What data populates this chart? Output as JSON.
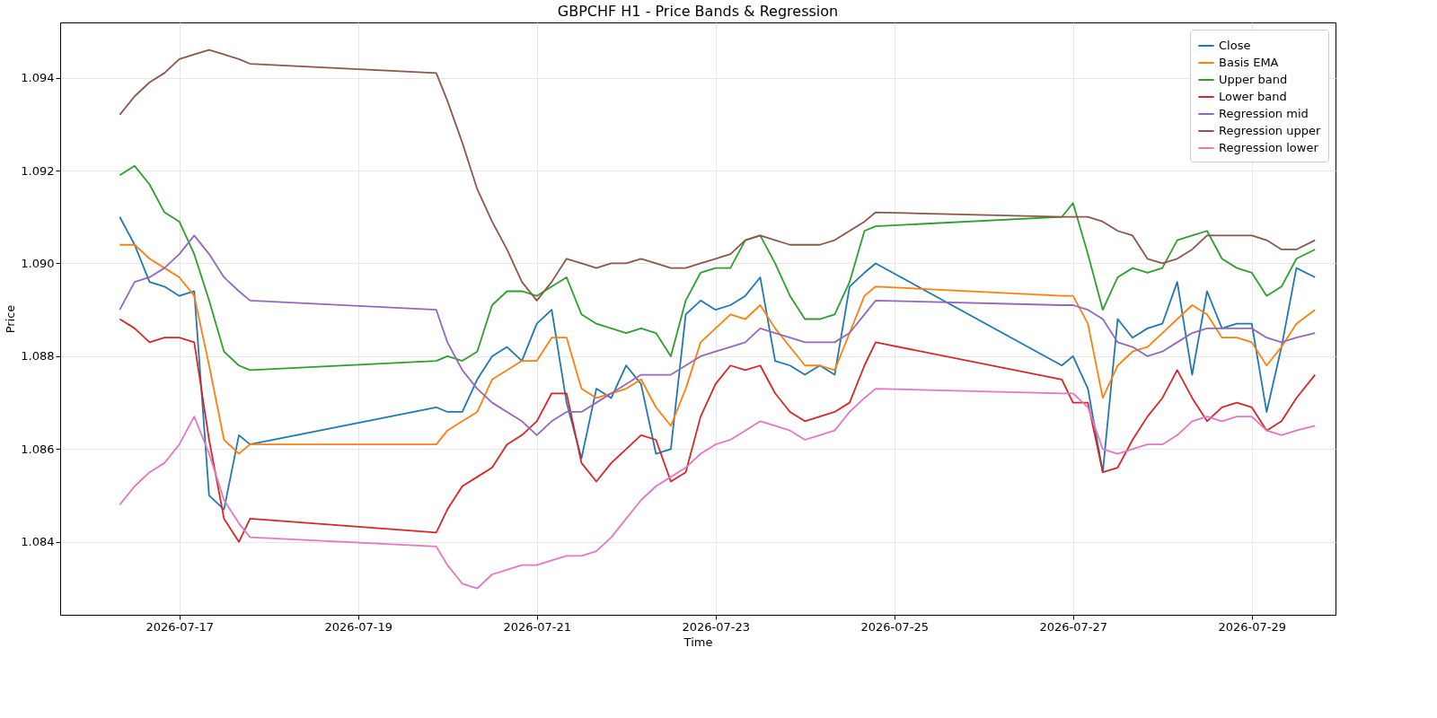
{
  "chart_data": {
    "type": "line",
    "title": "GBPCHF H1 - Price Bands & Regression",
    "xlabel": "Time",
    "ylabel": "Price",
    "x": [
      "2026-07-16T08:00",
      "2026-07-16T12:00",
      "2026-07-16T16:00",
      "2026-07-16T20:00",
      "2026-07-17T00:00",
      "2026-07-17T04:00",
      "2026-07-17T08:00",
      "2026-07-17T12:00",
      "2026-07-17T16:00",
      "2026-07-17T19:00",
      "2026-07-19T21:00",
      "2026-07-20T00:00",
      "2026-07-20T04:00",
      "2026-07-20T08:00",
      "2026-07-20T12:00",
      "2026-07-20T16:00",
      "2026-07-20T20:00",
      "2026-07-21T00:00",
      "2026-07-21T04:00",
      "2026-07-21T08:00",
      "2026-07-21T12:00",
      "2026-07-21T16:00",
      "2026-07-21T20:00",
      "2026-07-22T00:00",
      "2026-07-22T04:00",
      "2026-07-22T08:00",
      "2026-07-22T12:00",
      "2026-07-22T16:00",
      "2026-07-22T20:00",
      "2026-07-23T00:00",
      "2026-07-23T04:00",
      "2026-07-23T08:00",
      "2026-07-23T12:00",
      "2026-07-23T16:00",
      "2026-07-23T20:00",
      "2026-07-24T00:00",
      "2026-07-24T04:00",
      "2026-07-24T08:00",
      "2026-07-24T12:00",
      "2026-07-24T16:00",
      "2026-07-24T19:00",
      "2026-07-26T21:00",
      "2026-07-27T00:00",
      "2026-07-27T04:00",
      "2026-07-27T08:00",
      "2026-07-27T12:00",
      "2026-07-27T16:00",
      "2026-07-27T20:00",
      "2026-07-28T00:00",
      "2026-07-28T04:00",
      "2026-07-28T08:00",
      "2026-07-28T12:00",
      "2026-07-28T16:00",
      "2026-07-28T20:00",
      "2026-07-29T00:00",
      "2026-07-29T04:00",
      "2026-07-29T08:00",
      "2026-07-29T12:00",
      "2026-07-29T17:00"
    ],
    "series": [
      {
        "name": "Close",
        "color": "#1f77b4",
        "values": [
          1.091,
          1.0904,
          1.0896,
          1.0895,
          1.0893,
          1.0894,
          1.085,
          1.0847,
          1.0863,
          1.0861,
          1.0869,
          1.0868,
          1.0868,
          1.0875,
          1.088,
          1.0882,
          1.0879,
          1.0887,
          1.089,
          1.087,
          1.0858,
          1.0873,
          1.0871,
          1.0878,
          1.0874,
          1.0859,
          1.086,
          1.0889,
          1.0892,
          1.089,
          1.0891,
          1.0893,
          1.0897,
          1.0879,
          1.0878,
          1.0876,
          1.0878,
          1.0876,
          1.0895,
          1.0898,
          1.09,
          1.0878,
          1.088,
          1.0873,
          1.0855,
          1.0888,
          1.0884,
          1.0886,
          1.0887,
          1.0896,
          1.0876,
          1.0894,
          1.0886,
          1.0887,
          1.0887,
          1.0868,
          1.0882,
          1.0899,
          1.0897
        ]
      },
      {
        "name": "Basis EMA",
        "color": "#ff7f0e",
        "values": [
          1.0904,
          1.0904,
          1.0901,
          1.0899,
          1.0897,
          1.0893,
          1.0878,
          1.0862,
          1.0859,
          1.0861,
          1.0861,
          1.0864,
          1.0866,
          1.0868,
          1.0875,
          1.0877,
          1.0879,
          1.0879,
          1.0884,
          1.0884,
          1.0873,
          1.0871,
          1.0872,
          1.0873,
          1.0875,
          1.0869,
          1.0865,
          1.0873,
          1.0883,
          1.0886,
          1.0889,
          1.0888,
          1.0891,
          1.0886,
          1.0882,
          1.0878,
          1.0878,
          1.0877,
          1.0885,
          1.0893,
          1.0895,
          1.0893,
          1.0893,
          1.0887,
          1.0871,
          1.0878,
          1.0881,
          1.0882,
          1.0885,
          1.0888,
          1.0891,
          1.0889,
          1.0884,
          1.0884,
          1.0883,
          1.0878,
          1.0882,
          1.0887,
          1.089
        ]
      },
      {
        "name": "Upper band",
        "color": "#2ca02c",
        "values": [
          1.0919,
          1.0921,
          1.0917,
          1.0911,
          1.0909,
          1.0902,
          1.0892,
          1.0881,
          1.0878,
          1.0877,
          1.0879,
          1.088,
          1.0879,
          1.0881,
          1.0891,
          1.0894,
          1.0894,
          1.0893,
          1.0895,
          1.0897,
          1.0889,
          1.0887,
          1.0886,
          1.0885,
          1.0886,
          1.0885,
          1.088,
          1.0892,
          1.0898,
          1.0899,
          1.0899,
          1.0905,
          1.0906,
          1.09,
          1.0893,
          1.0888,
          1.0888,
          1.0889,
          1.0896,
          1.0907,
          1.0908,
          1.091,
          1.0913,
          1.0902,
          1.089,
          1.0897,
          1.0899,
          1.0898,
          1.0899,
          1.0905,
          1.0906,
          1.0907,
          1.0901,
          1.0899,
          1.0898,
          1.0893,
          1.0895,
          1.0901,
          1.0903
        ]
      },
      {
        "name": "Lower band",
        "color": "#d62728",
        "values": [
          1.0888,
          1.0886,
          1.0883,
          1.0884,
          1.0884,
          1.0883,
          1.0862,
          1.0845,
          1.084,
          1.0845,
          1.0842,
          1.0847,
          1.0852,
          1.0854,
          1.0856,
          1.0861,
          1.0863,
          1.0866,
          1.0872,
          1.0872,
          1.0857,
          1.0853,
          1.0857,
          1.086,
          1.0863,
          1.0862,
          1.0853,
          1.0855,
          1.0867,
          1.0874,
          1.0878,
          1.0877,
          1.0878,
          1.0872,
          1.0868,
          1.0866,
          1.0867,
          1.0868,
          1.087,
          1.0878,
          1.0883,
          1.0875,
          1.087,
          1.087,
          1.0855,
          1.0856,
          1.0862,
          1.0867,
          1.0871,
          1.0877,
          1.0871,
          1.0866,
          1.0869,
          1.087,
          1.0869,
          1.0864,
          1.0866,
          1.0871,
          1.0876
        ]
      },
      {
        "name": "Regression mid",
        "color": "#9467bd",
        "values": [
          1.089,
          1.0896,
          1.0897,
          1.0899,
          1.0902,
          1.0906,
          1.0902,
          1.0897,
          1.0894,
          1.0892,
          1.089,
          1.0883,
          1.0877,
          1.0873,
          1.087,
          1.0868,
          1.0866,
          1.0863,
          1.0866,
          1.0868,
          1.0868,
          1.087,
          1.0872,
          1.0874,
          1.0876,
          1.0876,
          1.0876,
          1.0878,
          1.088,
          1.0881,
          1.0882,
          1.0883,
          1.0886,
          1.0885,
          1.0884,
          1.0883,
          1.0883,
          1.0883,
          1.0885,
          1.0889,
          1.0892,
          1.0891,
          1.0891,
          1.089,
          1.0888,
          1.0883,
          1.0882,
          1.088,
          1.0881,
          1.0883,
          1.0885,
          1.0886,
          1.0886,
          1.0886,
          1.0886,
          1.0884,
          1.0883,
          1.0884,
          1.0885
        ]
      },
      {
        "name": "Regression upper",
        "color": "#8c564b",
        "values": [
          1.0932,
          1.0936,
          1.0939,
          1.0941,
          1.0944,
          1.0945,
          1.0946,
          1.0945,
          1.0944,
          1.0943,
          1.0941,
          1.0935,
          1.0926,
          1.0916,
          1.0909,
          1.0903,
          1.0896,
          1.0892,
          1.0896,
          1.0901,
          1.09,
          1.0899,
          1.09,
          1.09,
          1.0901,
          1.09,
          1.0899,
          1.0899,
          1.09,
          1.0901,
          1.0902,
          1.0905,
          1.0906,
          1.0905,
          1.0904,
          1.0904,
          1.0904,
          1.0905,
          1.0907,
          1.0909,
          1.0911,
          1.091,
          1.091,
          1.091,
          1.0909,
          1.0907,
          1.0906,
          1.0901,
          1.09,
          1.0901,
          1.0903,
          1.0906,
          1.0906,
          1.0906,
          1.0906,
          1.0905,
          1.0903,
          1.0903,
          1.0905
        ]
      },
      {
        "name": "Regression lower",
        "color": "#e377c2",
        "values": [
          1.0848,
          1.0852,
          1.0855,
          1.0857,
          1.0861,
          1.0867,
          1.0859,
          1.0849,
          1.0844,
          1.0841,
          1.0839,
          1.0835,
          1.0831,
          1.083,
          1.0833,
          1.0834,
          1.0835,
          1.0835,
          1.0836,
          1.0837,
          1.0837,
          1.0838,
          1.0841,
          1.0845,
          1.0849,
          1.0852,
          1.0854,
          1.0856,
          1.0859,
          1.0861,
          1.0862,
          1.0864,
          1.0866,
          1.0865,
          1.0864,
          1.0862,
          1.0863,
          1.0864,
          1.0868,
          1.0871,
          1.0873,
          1.0872,
          1.0872,
          1.0869,
          1.086,
          1.0859,
          1.086,
          1.0861,
          1.0861,
          1.0863,
          1.0866,
          1.0867,
          1.0866,
          1.0867,
          1.0867,
          1.0864,
          1.0863,
          1.0864,
          1.0865
        ]
      }
    ],
    "xlim": [
      "2026-07-15T16:00",
      "2026-07-29T22:30"
    ],
    "xticks": [
      "2026-07-17",
      "2026-07-19",
      "2026-07-21",
      "2026-07-23",
      "2026-07-25",
      "2026-07-27",
      "2026-07-29"
    ],
    "ylim": [
      1.08243,
      1.09519
    ],
    "yticks": [
      1.084,
      1.086,
      1.088,
      {
        "value": 1.09,
        "label": "1.090"
      },
      1.092,
      1.094
    ],
    "grid": true,
    "legend": "top right"
  }
}
